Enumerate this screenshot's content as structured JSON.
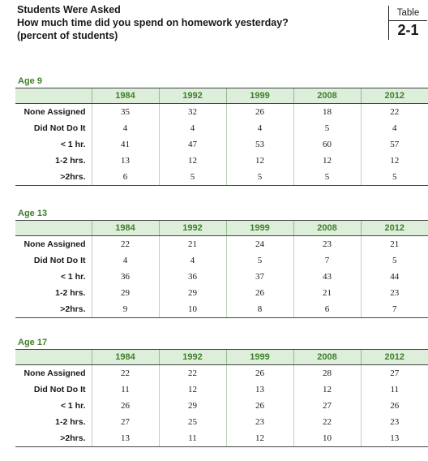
{
  "header": {
    "line1": "Students Were Asked",
    "line2": "How much time did you spend on homework yesterday?",
    "line3": "(percent of students)"
  },
  "badge": {
    "word": "Table",
    "number": "2-1"
  },
  "years": [
    "1984",
    "1992",
    "1999",
    "2008",
    "2012"
  ],
  "row_labels": [
    "None Assigned",
    "Did Not Do It",
    "< 1 hr.",
    "1-2 hrs.",
    ">2hrs."
  ],
  "sections": [
    {
      "label": "Age 9",
      "rows": [
        [
          "35",
          "32",
          "26",
          "18",
          "22"
        ],
        [
          "4",
          "4",
          "4",
          "5",
          "4"
        ],
        [
          "41",
          "47",
          "53",
          "60",
          "57"
        ],
        [
          "13",
          "12",
          "12",
          "12",
          "12"
        ],
        [
          "6",
          "5",
          "5",
          "5",
          "5"
        ]
      ]
    },
    {
      "label": "Age 13",
      "rows": [
        [
          "22",
          "21",
          "24",
          "23",
          "21"
        ],
        [
          "4",
          "4",
          "5",
          "7",
          "5"
        ],
        [
          "36",
          "36",
          "37",
          "43",
          "44"
        ],
        [
          "29",
          "29",
          "26",
          "21",
          "23"
        ],
        [
          "9",
          "10",
          "8",
          "6",
          "7"
        ]
      ]
    },
    {
      "label": "Age 17",
      "rows": [
        [
          "22",
          "22",
          "26",
          "28",
          "27"
        ],
        [
          "11",
          "12",
          "13",
          "12",
          "11"
        ],
        [
          "26",
          "29",
          "26",
          "27",
          "26"
        ],
        [
          "27",
          "25",
          "23",
          "22",
          "23"
        ],
        [
          "13",
          "11",
          "12",
          "10",
          "13"
        ]
      ]
    }
  ]
}
